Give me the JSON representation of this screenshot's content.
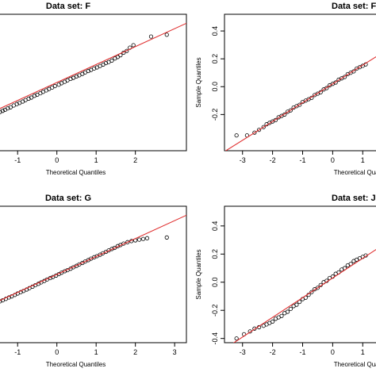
{
  "chart_data": [
    {
      "id": "A",
      "type": "scatter",
      "subtype": "qq-plot",
      "title": "Data set:  F",
      "xlabel": "Theoretical Quantiles",
      "ylabel": "",
      "x_ticks": [
        "-1",
        "0",
        "1",
        "2"
      ],
      "x_tick_values": [
        -1,
        0,
        1,
        2
      ],
      "y_ticks": [],
      "xlim": [
        -1.55,
        3.3
      ],
      "ylim": [
        -1.9,
        1.9
      ],
      "reference_line": {
        "color": "#e03030",
        "intercept": 0.0,
        "slope": 0.5
      },
      "points": {
        "x": [
          -1.45,
          -1.38,
          -1.32,
          -1.25,
          -1.18,
          -1.1,
          -1.02,
          -0.95,
          -0.87,
          -0.8,
          -0.72,
          -0.65,
          -0.57,
          -0.5,
          -0.42,
          -0.35,
          -0.27,
          -0.2,
          -0.12,
          -0.05,
          0.05,
          0.12,
          0.2,
          0.27,
          0.35,
          0.42,
          0.5,
          0.57,
          0.65,
          0.72,
          0.8,
          0.87,
          0.95,
          1.02,
          1.1,
          1.18,
          1.25,
          1.32,
          1.4,
          1.48,
          1.55,
          1.62,
          1.7,
          1.78,
          1.86,
          1.95,
          2.4,
          2.8
        ],
        "y": [
          -0.82,
          -0.79,
          -0.76,
          -0.72,
          -0.69,
          -0.64,
          -0.6,
          -0.57,
          -0.53,
          -0.49,
          -0.45,
          -0.42,
          -0.37,
          -0.34,
          -0.3,
          -0.26,
          -0.22,
          -0.18,
          -0.14,
          -0.1,
          -0.06,
          -0.02,
          0.02,
          0.06,
          0.1,
          0.13,
          0.17,
          0.2,
          0.24,
          0.28,
          0.32,
          0.35,
          0.39,
          0.42,
          0.46,
          0.5,
          0.54,
          0.57,
          0.61,
          0.67,
          0.71,
          0.76,
          0.83,
          0.88,
          0.97,
          1.04,
          1.28,
          1.33
        ]
      }
    },
    {
      "id": "B",
      "type": "scatter",
      "subtype": "qq-plot",
      "title": "Data set:  F",
      "xlabel": "Theoretical Quantiles",
      "ylabel": "Sample Quantiles",
      "x_ticks": [
        "-3",
        "-2",
        "-1",
        "0",
        "1"
      ],
      "x_tick_values": [
        -3,
        -2,
        -1,
        0,
        1
      ],
      "y_ticks": [
        "-0.2",
        "0.0",
        "0.2",
        "0.4"
      ],
      "y_tick_values": [
        -0.2,
        0.0,
        0.2,
        0.4
      ],
      "xlim": [
        -3.6,
        1.6
      ],
      "ylim": [
        -0.46,
        0.52
      ],
      "reference_line": {
        "color": "#e03030",
        "intercept": 0.02,
        "slope": 0.135
      },
      "points": {
        "x": [
          -3.2,
          -2.85,
          -2.6,
          -2.45,
          -2.3,
          -2.2,
          -2.1,
          -2.0,
          -1.9,
          -1.8,
          -1.7,
          -1.6,
          -1.5,
          -1.4,
          -1.3,
          -1.2,
          -1.1,
          -1.0,
          -0.9,
          -0.8,
          -0.7,
          -0.6,
          -0.5,
          -0.4,
          -0.3,
          -0.2,
          -0.1,
          0.0,
          0.1,
          0.2,
          0.3,
          0.4,
          0.5,
          0.6,
          0.7,
          0.8,
          0.9,
          1.0,
          1.1
        ],
        "y": [
          -0.35,
          -0.35,
          -0.33,
          -0.31,
          -0.29,
          -0.27,
          -0.26,
          -0.25,
          -0.24,
          -0.22,
          -0.21,
          -0.2,
          -0.18,
          -0.17,
          -0.15,
          -0.14,
          -0.13,
          -0.11,
          -0.1,
          -0.09,
          -0.08,
          -0.06,
          -0.05,
          -0.04,
          -0.02,
          -0.01,
          0.01,
          0.02,
          0.03,
          0.05,
          0.06,
          0.07,
          0.09,
          0.1,
          0.11,
          0.13,
          0.14,
          0.15,
          0.16
        ]
      }
    },
    {
      "id": "C",
      "type": "scatter",
      "subtype": "qq-plot",
      "title": "Data set:  G",
      "xlabel": "Theoretical Quantiles",
      "ylabel": "",
      "x_ticks": [
        "-1",
        "0",
        "1",
        "2",
        "3"
      ],
      "x_tick_values": [
        -1,
        0,
        1,
        2,
        3
      ],
      "y_ticks": [],
      "xlim": [
        -1.55,
        3.3
      ],
      "ylim": [
        -1.9,
        1.9
      ],
      "reference_line": {
        "color": "#e03030",
        "intercept": 0.0,
        "slope": 0.5
      },
      "points": {
        "x": [
          -1.45,
          -1.38,
          -1.3,
          -1.22,
          -1.15,
          -1.07,
          -1.0,
          -0.92,
          -0.85,
          -0.77,
          -0.7,
          -0.62,
          -0.55,
          -0.47,
          -0.4,
          -0.32,
          -0.25,
          -0.17,
          -0.1,
          -0.02,
          0.05,
          0.12,
          0.2,
          0.27,
          0.35,
          0.42,
          0.5,
          0.57,
          0.65,
          0.72,
          0.8,
          0.87,
          0.95,
          1.02,
          1.1,
          1.17,
          1.25,
          1.32,
          1.4,
          1.47,
          1.55,
          1.62,
          1.7,
          1.8,
          1.9,
          2.0,
          2.1,
          2.2,
          2.3,
          2.8
        ],
        "y": [
          -0.75,
          -0.72,
          -0.68,
          -0.64,
          -0.61,
          -0.57,
          -0.53,
          -0.49,
          -0.46,
          -0.42,
          -0.38,
          -0.34,
          -0.3,
          -0.26,
          -0.22,
          -0.18,
          -0.14,
          -0.1,
          -0.07,
          -0.03,
          0.01,
          0.05,
          0.09,
          0.12,
          0.16,
          0.2,
          0.24,
          0.28,
          0.32,
          0.36,
          0.4,
          0.44,
          0.48,
          0.51,
          0.55,
          0.59,
          0.63,
          0.67,
          0.71,
          0.74,
          0.79,
          0.82,
          0.86,
          0.9,
          0.93,
          0.95,
          0.97,
          0.99,
          1.01,
          1.03
        ]
      }
    },
    {
      "id": "D",
      "type": "scatter",
      "subtype": "qq-plot",
      "title": "Data set:  J",
      "xlabel": "Theoretical Quantiles",
      "ylabel": "Sample Quantiles",
      "x_ticks": [
        "-3",
        "-2",
        "-1",
        "0",
        "1"
      ],
      "x_tick_values": [
        -3,
        -2,
        -1,
        0,
        1
      ],
      "y_ticks": [
        "-0.4",
        "-0.2",
        "0.0",
        "0.2",
        "0.4"
      ],
      "y_tick_values": [
        -0.4,
        -0.2,
        0.0,
        0.2,
        0.4
      ],
      "xlim": [
        -3.6,
        1.6
      ],
      "ylim": [
        -0.43,
        0.54
      ],
      "reference_line": {
        "color": "#e03030",
        "intercept": 0.03,
        "slope": 0.14
      },
      "points": {
        "x": [
          -3.2,
          -2.95,
          -2.75,
          -2.6,
          -2.45,
          -2.3,
          -2.2,
          -2.1,
          -2.0,
          -1.9,
          -1.8,
          -1.7,
          -1.6,
          -1.5,
          -1.4,
          -1.3,
          -1.2,
          -1.1,
          -1.0,
          -0.9,
          -0.8,
          -0.7,
          -0.6,
          -0.5,
          -0.4,
          -0.3,
          -0.2,
          -0.1,
          0.0,
          0.1,
          0.2,
          0.3,
          0.4,
          0.5,
          0.6,
          0.7,
          0.8,
          0.9,
          1.0,
          1.1
        ],
        "y": [
          -0.4,
          -0.37,
          -0.35,
          -0.33,
          -0.32,
          -0.31,
          -0.3,
          -0.29,
          -0.28,
          -0.26,
          -0.25,
          -0.24,
          -0.22,
          -0.21,
          -0.19,
          -0.17,
          -0.16,
          -0.14,
          -0.12,
          -0.11,
          -0.09,
          -0.07,
          -0.05,
          -0.04,
          -0.02,
          0.0,
          0.01,
          0.03,
          0.04,
          0.06,
          0.07,
          0.09,
          0.1,
          0.12,
          0.13,
          0.15,
          0.16,
          0.17,
          0.18,
          0.19
        ]
      }
    }
  ]
}
